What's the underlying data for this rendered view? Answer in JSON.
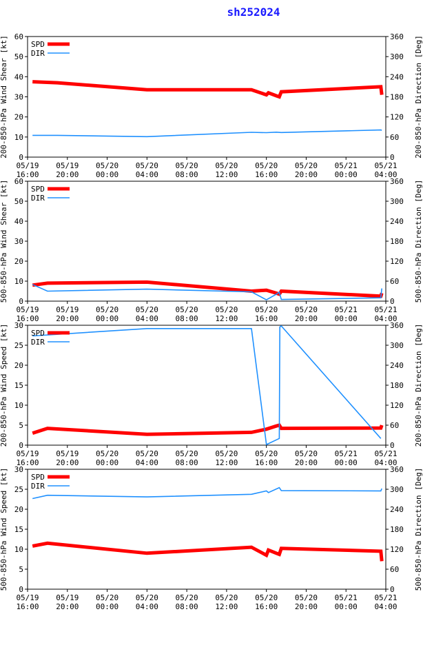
{
  "title": "sh252024",
  "colors": {
    "spd": "#ff0000",
    "dir": "#1e90ff",
    "axis": "#000000",
    "title": "#1a1aff"
  },
  "x_ticks": [
    {
      "t": 0,
      "date": "05/19",
      "time": "16:00"
    },
    {
      "t": 4,
      "date": "05/19",
      "time": "20:00"
    },
    {
      "t": 8,
      "date": "05/20",
      "time": "00:00"
    },
    {
      "t": 12,
      "date": "05/20",
      "time": "04:00"
    },
    {
      "t": 16,
      "date": "05/20",
      "time": "08:00"
    },
    {
      "t": 20,
      "date": "05/20",
      "time": "12:00"
    },
    {
      "t": 24,
      "date": "05/20",
      "time": "16:00"
    },
    {
      "t": 28,
      "date": "05/20",
      "time": "20:00"
    },
    {
      "t": 32,
      "date": "05/21",
      "time": "00:00"
    },
    {
      "t": 36,
      "date": "05/21",
      "time": "04:00"
    }
  ],
  "chart_data": [
    {
      "type": "line",
      "ylabel": "200-850-hPa Wind Shear [kt]",
      "y2label": "200-850-hPa Direction [Deg]",
      "xlim": [
        0,
        36
      ],
      "ylim": [
        0,
        60
      ],
      "y2lim": [
        0,
        360
      ],
      "yticks": [
        0,
        10,
        20,
        30,
        40,
        50,
        60
      ],
      "y2ticks": [
        0,
        60,
        120,
        180,
        240,
        300,
        360
      ],
      "legend": [
        "SPD",
        "DIR"
      ],
      "series": [
        {
          "name": "SPD",
          "axis": "left",
          "x": [
            0.5,
            3,
            12,
            22.5,
            24,
            24.2,
            25,
            25.3,
            25.5,
            35.5,
            35.6
          ],
          "y": [
            37.5,
            37,
            33.5,
            33.5,
            31,
            32,
            30.5,
            30,
            32.5,
            35,
            31
          ]
        },
        {
          "name": "DIR",
          "axis": "right",
          "x": [
            0.5,
            3,
            12,
            22.5,
            24,
            25,
            25.5,
            35.5,
            35.6
          ],
          "y": [
            65,
            65,
            61,
            74,
            73,
            74.5,
            73.5,
            81,
            80
          ]
        }
      ]
    },
    {
      "type": "line",
      "ylabel": "500-850-hPa Wind Shear [kt]",
      "y2label": "500-850-hPa Direction [Deg]",
      "xlim": [
        0,
        36
      ],
      "ylim": [
        0,
        60
      ],
      "y2lim": [
        0,
        360
      ],
      "yticks": [
        0,
        10,
        20,
        30,
        40,
        50,
        60
      ],
      "y2ticks": [
        0,
        60,
        120,
        180,
        240,
        300,
        360
      ],
      "legend": [
        "SPD",
        "DIR"
      ],
      "series": [
        {
          "name": "SPD",
          "axis": "left",
          "x": [
            0.5,
            2,
            12,
            22.5,
            24,
            25,
            25.3,
            25.5,
            35.5,
            35.6
          ],
          "y": [
            8,
            9,
            9.5,
            5,
            5.5,
            4,
            3.5,
            5,
            2.5,
            4
          ]
        },
        {
          "name": "DIR",
          "axis": "right",
          "x": [
            0.5,
            2,
            12,
            22.5,
            24,
            25,
            25.3,
            25.5,
            35.5,
            35.6
          ],
          "y": [
            50,
            30,
            36,
            28,
            4,
            21,
            27,
            5,
            10,
            38
          ]
        }
      ]
    },
    {
      "type": "line",
      "ylabel": "200-850-hPa Wind Speed [kt]",
      "y2label": "200-850-hPa Direction [Deg]",
      "xlim": [
        0,
        36
      ],
      "ylim": [
        0,
        30
      ],
      "y2lim": [
        0,
        360
      ],
      "yticks": [
        0,
        5,
        10,
        15,
        20,
        25,
        30
      ],
      "y2ticks": [
        0,
        60,
        120,
        180,
        240,
        300,
        360
      ],
      "legend": [
        "SPD",
        "DIR"
      ],
      "series": [
        {
          "name": "SPD",
          "axis": "left",
          "x": [
            0.5,
            2,
            12,
            22.5,
            24,
            25,
            25.3,
            25.5,
            35.5,
            35.6
          ],
          "y": [
            3,
            4.2,
            2.7,
            3.2,
            4,
            4.8,
            5,
            4.2,
            4.3,
            5
          ]
        },
        {
          "name": "DIR",
          "axis": "right",
          "x": [
            0.5,
            12,
            22.5,
            24,
            24.1,
            25.3,
            25.35,
            25.5,
            35.5
          ],
          "y": [
            328,
            350,
            350,
            2,
            3,
            20,
            355,
            358,
            20
          ]
        }
      ]
    },
    {
      "type": "line",
      "ylabel": "500-850-hPa Wind Speed [kt]",
      "y2label": "500-850-hPa Direction [Deg]",
      "xlim": [
        0,
        36
      ],
      "ylim": [
        0,
        30
      ],
      "y2lim": [
        0,
        360
      ],
      "yticks": [
        0,
        5,
        10,
        15,
        20,
        25,
        30
      ],
      "y2ticks": [
        0,
        60,
        120,
        180,
        240,
        300,
        360
      ],
      "legend": [
        "SPD",
        "DIR"
      ],
      "series": [
        {
          "name": "SPD",
          "axis": "left",
          "x": [
            0.5,
            2,
            12,
            22.5,
            24,
            24.2,
            25,
            25.3,
            25.5,
            35.5,
            35.6
          ],
          "y": [
            10.8,
            11.5,
            9,
            10.5,
            8.5,
            9.8,
            9,
            8.7,
            10.2,
            9.5,
            7
          ]
        },
        {
          "name": "DIR",
          "axis": "right",
          "x": [
            0.5,
            2,
            12,
            22.5,
            24,
            24.2,
            25.3,
            25.5,
            35.5,
            35.6
          ],
          "y": [
            272,
            282,
            277,
            285,
            295,
            290,
            305,
            296,
            295,
            302
          ]
        }
      ]
    }
  ]
}
